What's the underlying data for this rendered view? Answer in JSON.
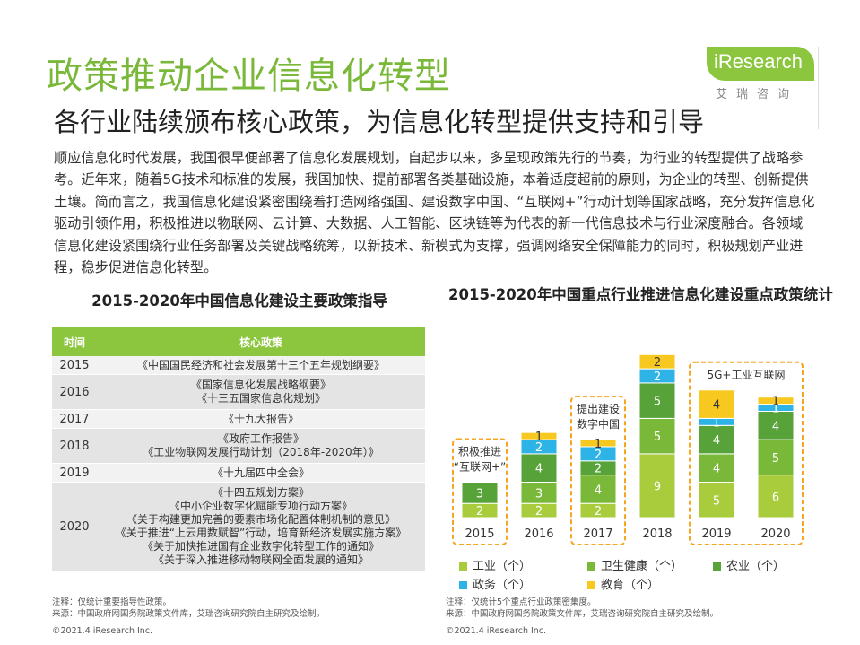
{
  "header": {
    "title": "政策推动企业信息化转型",
    "subtitle": "各行业陆续颁布核心政策，为信息化转型提供支持和引导"
  },
  "logo": {
    "text": "iResearch",
    "cn": "艾瑞咨询",
    "color": "#8cc63f"
  },
  "intro": "顺应信息化时代发展，我国很早便部署了信息化发展规划，自起步以来，多呈现政策先行的节奏，为行业的转型提供了战略参考。近年来，随着5G技术和标准的发展，我国加快、提前部署各类基础设施，本着适度超前的原则，为企业的转型、创新提供土壤。简而言之，我国信息化建设紧密围绕着打造网络强国、建设数字中国、“互联网+”行动计划等国家战略，充分发挥信息化驱动引领作用，积极推进以物联网、云计算、大数据、人工智能、区块链等为代表的新一代信息技术与行业深度融合。各领域信息化建设紧围绕行业任务部署及关键战略统筹，以新技术、新模式为支撑，强调网络安全保障能力的同时，积极规划产业进程，稳步促进信息化转型。",
  "left_panel": {
    "title": "2015-2020年中国信息化建设主要政策指导",
    "columns": [
      "时间",
      "核心政策"
    ],
    "rows": [
      {
        "year": "2015",
        "policies": [
          "《中国国民经济和社会发展第十三个五年规划纲要》"
        ]
      },
      {
        "year": "2016",
        "policies": [
          "《国家信息化发展战略纲要》",
          "《十三五国家信息化规划》"
        ]
      },
      {
        "year": "2017",
        "policies": [
          "《十九大报告》"
        ]
      },
      {
        "year": "2018",
        "policies": [
          "《政府工作报告》",
          "《工业物联网发展行动计划（2018年-2020年）》"
        ]
      },
      {
        "year": "2019",
        "policies": [
          "《十九届四中全会》"
        ]
      },
      {
        "year": "2020",
        "policies": [
          "《十四五规划方案》",
          "《中小企业数字化赋能专项行动方案》",
          "《关于构建更加完善的要素市场化配置体制机制的意见》",
          "《关于推进“上云用数赋智”行动，培育新经济发展实施方案》",
          "《关于加快推进国有企业数字化转型工作的通知》",
          "《关于深入推进移动物联网全面发展的通知》"
        ]
      }
    ],
    "note": "注释：仅统计重要指导性政策。",
    "source": "来源：中国政府网国务院政策文件库，艾瑞咨询研究院自主研究及绘制。",
    "copyright": "©2021.4 iResearch Inc."
  },
  "chart_data": {
    "type": "bar",
    "stacked": true,
    "title": "2015-2020年中国重点行业推进信息化建设重点政策统计",
    "categories": [
      "2015",
      "2016",
      "2017",
      "2018",
      "2019",
      "2020"
    ],
    "series": [
      {
        "name": "工业（个）",
        "color": "#a8cc3c",
        "values": [
          2,
          2,
          2,
          9,
          5,
          6
        ]
      },
      {
        "name": "卫生健康（个）",
        "color": "#7ab83a",
        "values": [
          0,
          3,
          4,
          5,
          4,
          5
        ]
      },
      {
        "name": "农业（个）",
        "color": "#58a23a",
        "values": [
          3,
          4,
          2,
          5,
          4,
          4
        ]
      },
      {
        "name": "政务（个）",
        "color": "#2eb3e6",
        "values": [
          0,
          2,
          2,
          2,
          1,
          1
        ]
      },
      {
        "name": "教育（个）",
        "color": "#f7c81f",
        "values": [
          0,
          1,
          1,
          2,
          4,
          1
        ]
      }
    ],
    "annotations": [
      {
        "text": [
          "积极推进",
          "“互联网+”"
        ],
        "categories": [
          "2015"
        ]
      },
      {
        "text": [
          "提出建设",
          "数字中国"
        ],
        "categories": [
          "2017"
        ]
      },
      {
        "text": [
          "5G+工业互联网"
        ],
        "categories": [
          "2019",
          "2020"
        ]
      }
    ],
    "legend_position": "bottom",
    "note": "注释：仅统计5个重点行业政策密集度。",
    "source": "来源：中国政府网国务院政策文件库，艾瑞咨询研究院自主研究及绘制。",
    "copyright": "©2021.4 iResearch Inc."
  }
}
